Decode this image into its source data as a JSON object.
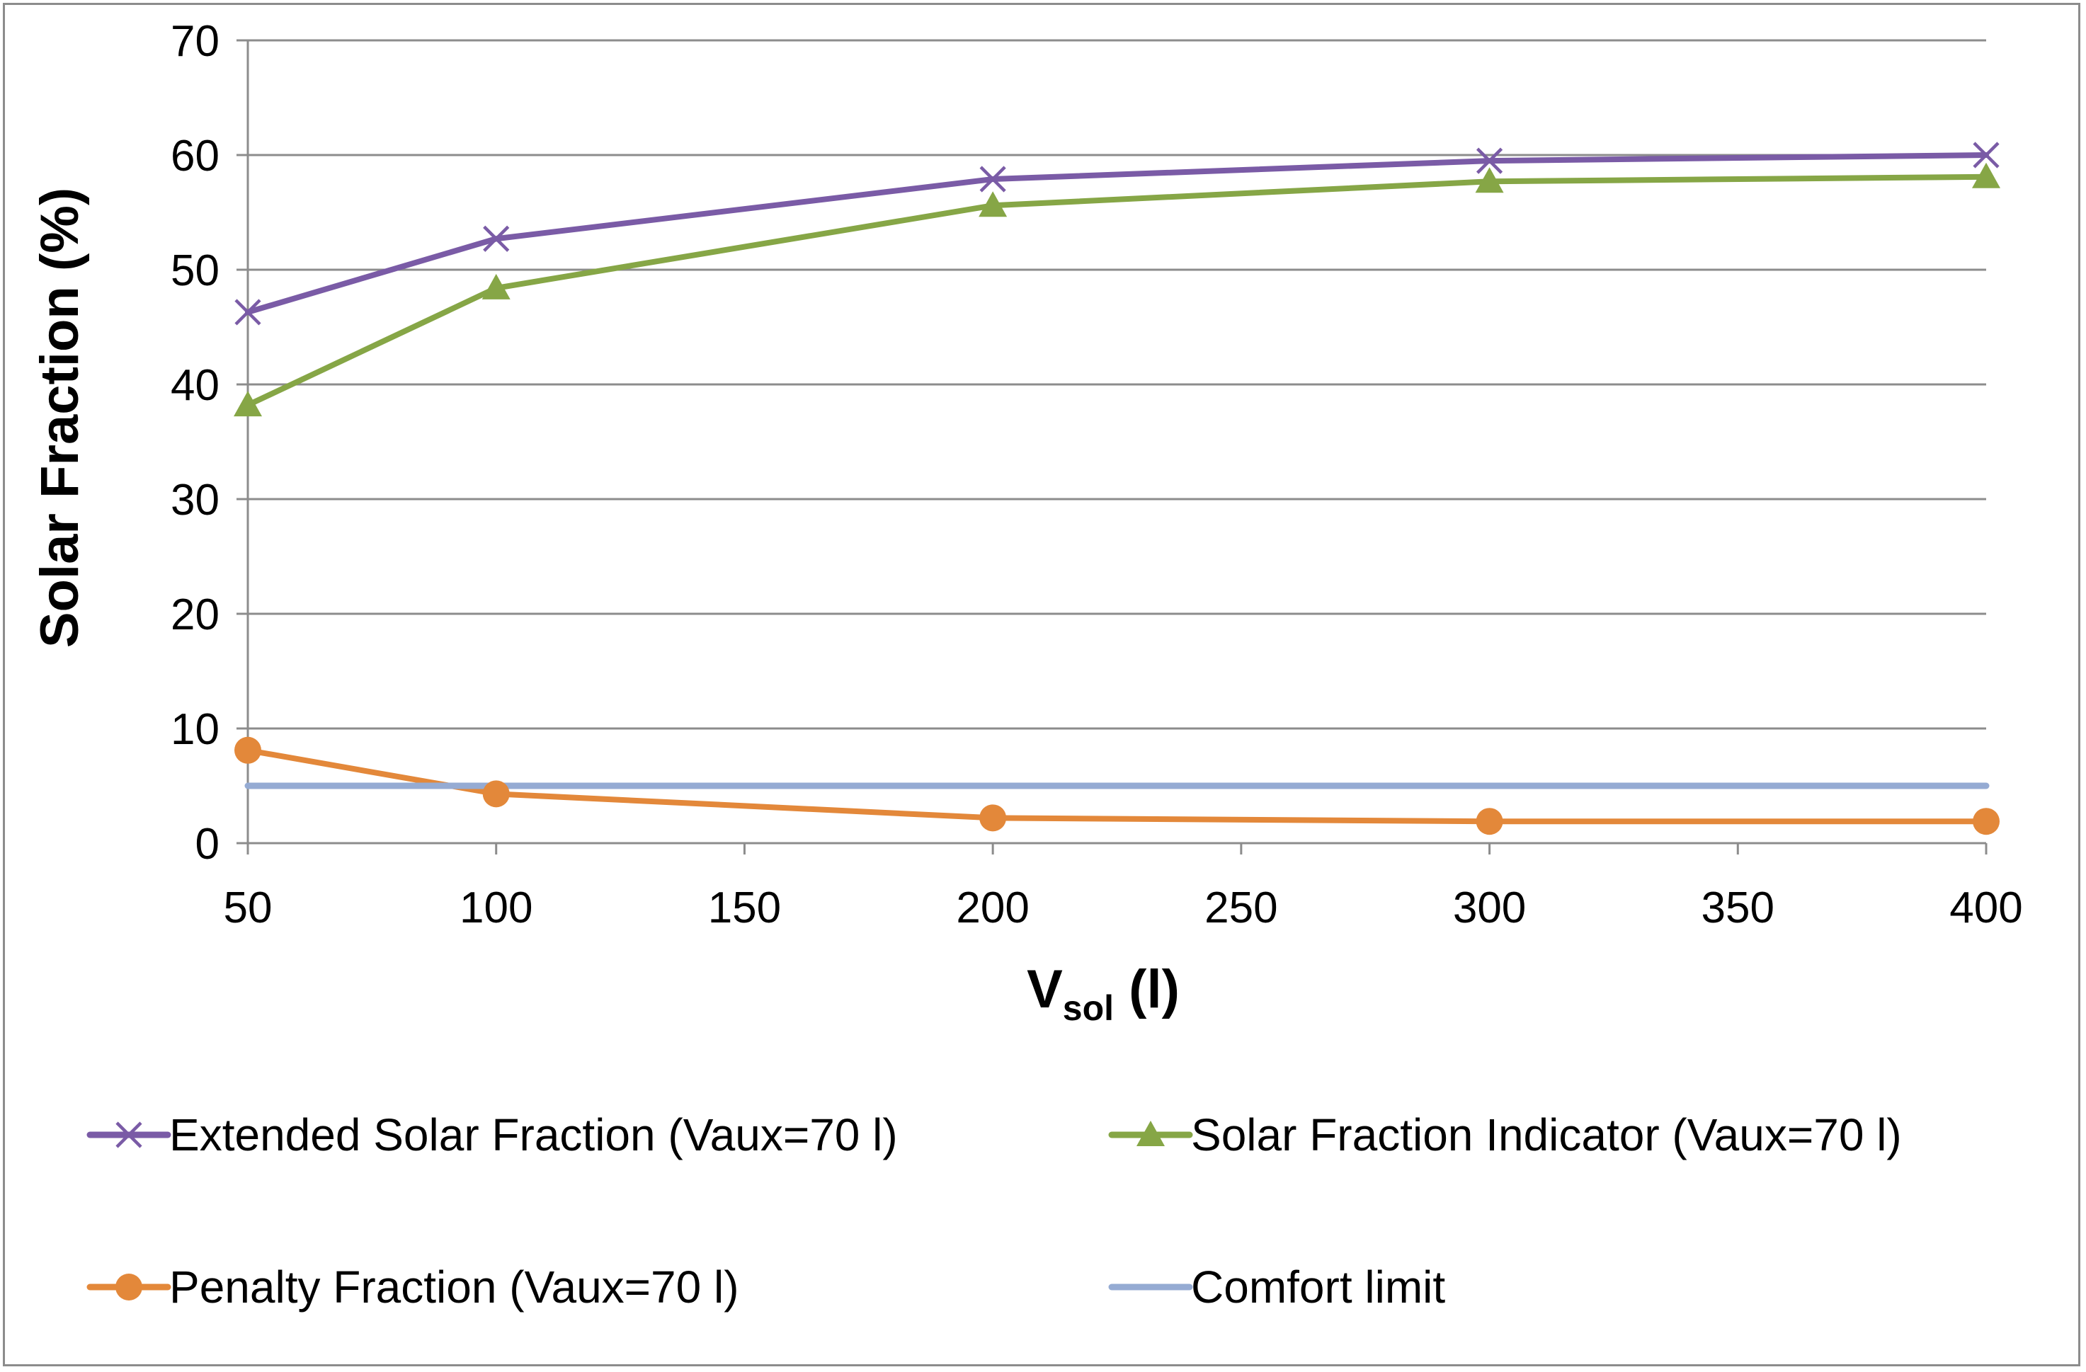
{
  "chart_data": {
    "type": "line",
    "title": "",
    "xlabel_main": "V",
    "xlabel_sub": "sol",
    "xlabel_unit": " (l)",
    "ylabel": "Solar Fraction (%)",
    "xlim": [
      50,
      400
    ],
    "ylim": [
      0,
      70
    ],
    "x_ticks": [
      50,
      100,
      150,
      200,
      250,
      300,
      350,
      400
    ],
    "y_ticks": [
      0,
      10,
      20,
      30,
      40,
      50,
      60,
      70
    ],
    "grid": "horizontal",
    "legend_position": "bottom",
    "series": [
      {
        "name": "Extended Solar Fraction (Vaux=70 l)",
        "color": "#7a5ba6",
        "marker": "x",
        "x": [
          50,
          100,
          200,
          300,
          400
        ],
        "values": [
          46.3,
          52.7,
          57.9,
          59.5,
          60.0
        ]
      },
      {
        "name": "Solar Fraction Indicator (Vaux=70 l)",
        "color": "#86a646",
        "marker": "triangle",
        "x": [
          50,
          100,
          200,
          300,
          400
        ],
        "values": [
          38.2,
          48.4,
          55.6,
          57.7,
          58.1
        ]
      },
      {
        "name": "Penalty Fraction (Vaux=70 l)",
        "color": "#e3883a",
        "marker": "circle",
        "x": [
          50,
          100,
          200,
          300,
          400
        ],
        "values": [
          8.1,
          4.3,
          2.2,
          1.9,
          1.9
        ]
      },
      {
        "name": "Comfort limit",
        "color": "#95abd3",
        "marker": "none",
        "x": [
          50,
          400
        ],
        "values": [
          5,
          5
        ]
      }
    ]
  }
}
